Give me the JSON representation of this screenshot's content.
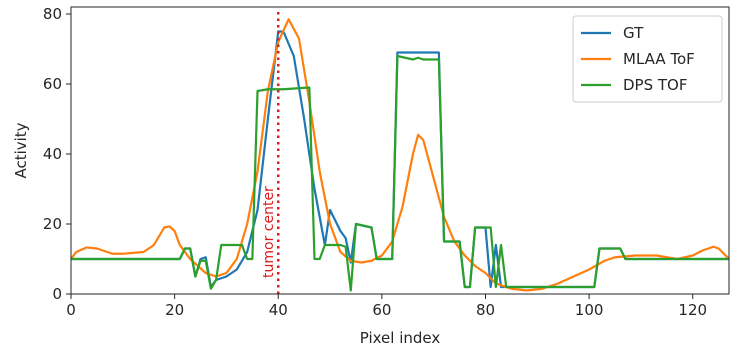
{
  "chart_data": {
    "type": "line",
    "title": "",
    "xlabel": "Pixel index",
    "ylabel": "Activity",
    "xlim": [
      0,
      127
    ],
    "ylim": [
      0,
      82
    ],
    "xticks": [
      0,
      20,
      40,
      60,
      80,
      100,
      120
    ],
    "yticks": [
      0,
      20,
      40,
      60,
      80
    ],
    "grid": false,
    "legend_position": "top-right",
    "annotation": {
      "x": 40,
      "text": "tumor center",
      "color": "#e01b1b"
    },
    "series": [
      {
        "name": "GT",
        "color": "#1f77b4",
        "points": [
          [
            0,
            10
          ],
          [
            10,
            10
          ],
          [
            20,
            10
          ],
          [
            21,
            10
          ],
          [
            22,
            13
          ],
          [
            23,
            13
          ],
          [
            24,
            5
          ],
          [
            25,
            10
          ],
          [
            26,
            10.5
          ],
          [
            27,
            2
          ],
          [
            28,
            4
          ],
          [
            30,
            5
          ],
          [
            32,
            7
          ],
          [
            34,
            12
          ],
          [
            36,
            24
          ],
          [
            38,
            50
          ],
          [
            40,
            75
          ],
          [
            41,
            75
          ],
          [
            43,
            68
          ],
          [
            45,
            50
          ],
          [
            47,
            30
          ],
          [
            49,
            14
          ],
          [
            50,
            24
          ],
          [
            51,
            21
          ],
          [
            52,
            18
          ],
          [
            53,
            16
          ],
          [
            54,
            9
          ],
          [
            55,
            20
          ],
          [
            58,
            19
          ],
          [
            59,
            10
          ],
          [
            61,
            10
          ],
          [
            62,
            10
          ],
          [
            63,
            69
          ],
          [
            71,
            69
          ],
          [
            72,
            15
          ],
          [
            75,
            15
          ],
          [
            76,
            2
          ],
          [
            77,
            2
          ],
          [
            78,
            19
          ],
          [
            80,
            19
          ],
          [
            81,
            2
          ],
          [
            82,
            14
          ],
          [
            83,
            2
          ],
          [
            85,
            2
          ],
          [
            101,
            2
          ],
          [
            102,
            13
          ],
          [
            106,
            13
          ],
          [
            107,
            10
          ],
          [
            127,
            10
          ]
        ]
      },
      {
        "name": "MLAA ToF",
        "color": "#ff7f0e",
        "points": [
          [
            0,
            10
          ],
          [
            1,
            12
          ],
          [
            3,
            13.3
          ],
          [
            5,
            13
          ],
          [
            8,
            11.5
          ],
          [
            10,
            11.5
          ],
          [
            14,
            12
          ],
          [
            16,
            14
          ],
          [
            18,
            19
          ],
          [
            19,
            19.3
          ],
          [
            20,
            18
          ],
          [
            21,
            14
          ],
          [
            23,
            10
          ],
          [
            26,
            6
          ],
          [
            28,
            5
          ],
          [
            30,
            6
          ],
          [
            32,
            10
          ],
          [
            34,
            20
          ],
          [
            36,
            35
          ],
          [
            38,
            58
          ],
          [
            40,
            72
          ],
          [
            42,
            78.5
          ],
          [
            44,
            73
          ],
          [
            46,
            55
          ],
          [
            48,
            35
          ],
          [
            50,
            20
          ],
          [
            52,
            12
          ],
          [
            54,
            9.5
          ],
          [
            56,
            9
          ],
          [
            58,
            9.5
          ],
          [
            60,
            11
          ],
          [
            62,
            15
          ],
          [
            64,
            25
          ],
          [
            66,
            40
          ],
          [
            67,
            45.5
          ],
          [
            68,
            44
          ],
          [
            70,
            33
          ],
          [
            72,
            22
          ],
          [
            74,
            15
          ],
          [
            76,
            11
          ],
          [
            78,
            8
          ],
          [
            80,
            6
          ],
          [
            82,
            3
          ],
          [
            85,
            1.5
          ],
          [
            88,
            1
          ],
          [
            91,
            1.5
          ],
          [
            94,
            3
          ],
          [
            97,
            5
          ],
          [
            100,
            7
          ],
          [
            103,
            9.5
          ],
          [
            105,
            10.5
          ],
          [
            109,
            11
          ],
          [
            113,
            11
          ],
          [
            117,
            10
          ],
          [
            120,
            11
          ],
          [
            122,
            12.5
          ],
          [
            124,
            13.5
          ],
          [
            125,
            13
          ],
          [
            127,
            10
          ]
        ]
      },
      {
        "name": "DPS TOF",
        "color": "#2ca02c",
        "points": [
          [
            0,
            10
          ],
          [
            20,
            10
          ],
          [
            21,
            10
          ],
          [
            22,
            13
          ],
          [
            23,
            13
          ],
          [
            24,
            5
          ],
          [
            25,
            9.5
          ],
          [
            26,
            9.5
          ],
          [
            27,
            1.5
          ],
          [
            28,
            4
          ],
          [
            29,
            14
          ],
          [
            33,
            14
          ],
          [
            34,
            10
          ],
          [
            35,
            10
          ],
          [
            36,
            58
          ],
          [
            38,
            58.5
          ],
          [
            41,
            58.5
          ],
          [
            46,
            59
          ],
          [
            47,
            10
          ],
          [
            48,
            10
          ],
          [
            49,
            14
          ],
          [
            52,
            14
          ],
          [
            53,
            13.5
          ],
          [
            54,
            1
          ],
          [
            55,
            20
          ],
          [
            58,
            19
          ],
          [
            59,
            10
          ],
          [
            62,
            10
          ],
          [
            63,
            68
          ],
          [
            66,
            67
          ],
          [
            67,
            67.5
          ],
          [
            68,
            67
          ],
          [
            71,
            67
          ],
          [
            72,
            15
          ],
          [
            75,
            15
          ],
          [
            76,
            2
          ],
          [
            77,
            2
          ],
          [
            78,
            19
          ],
          [
            81,
            19
          ],
          [
            82,
            2
          ],
          [
            83,
            14
          ],
          [
            84,
            2
          ],
          [
            101,
            2
          ],
          [
            102,
            13
          ],
          [
            106,
            13
          ],
          [
            107,
            10
          ],
          [
            127,
            10
          ]
        ]
      }
    ]
  }
}
